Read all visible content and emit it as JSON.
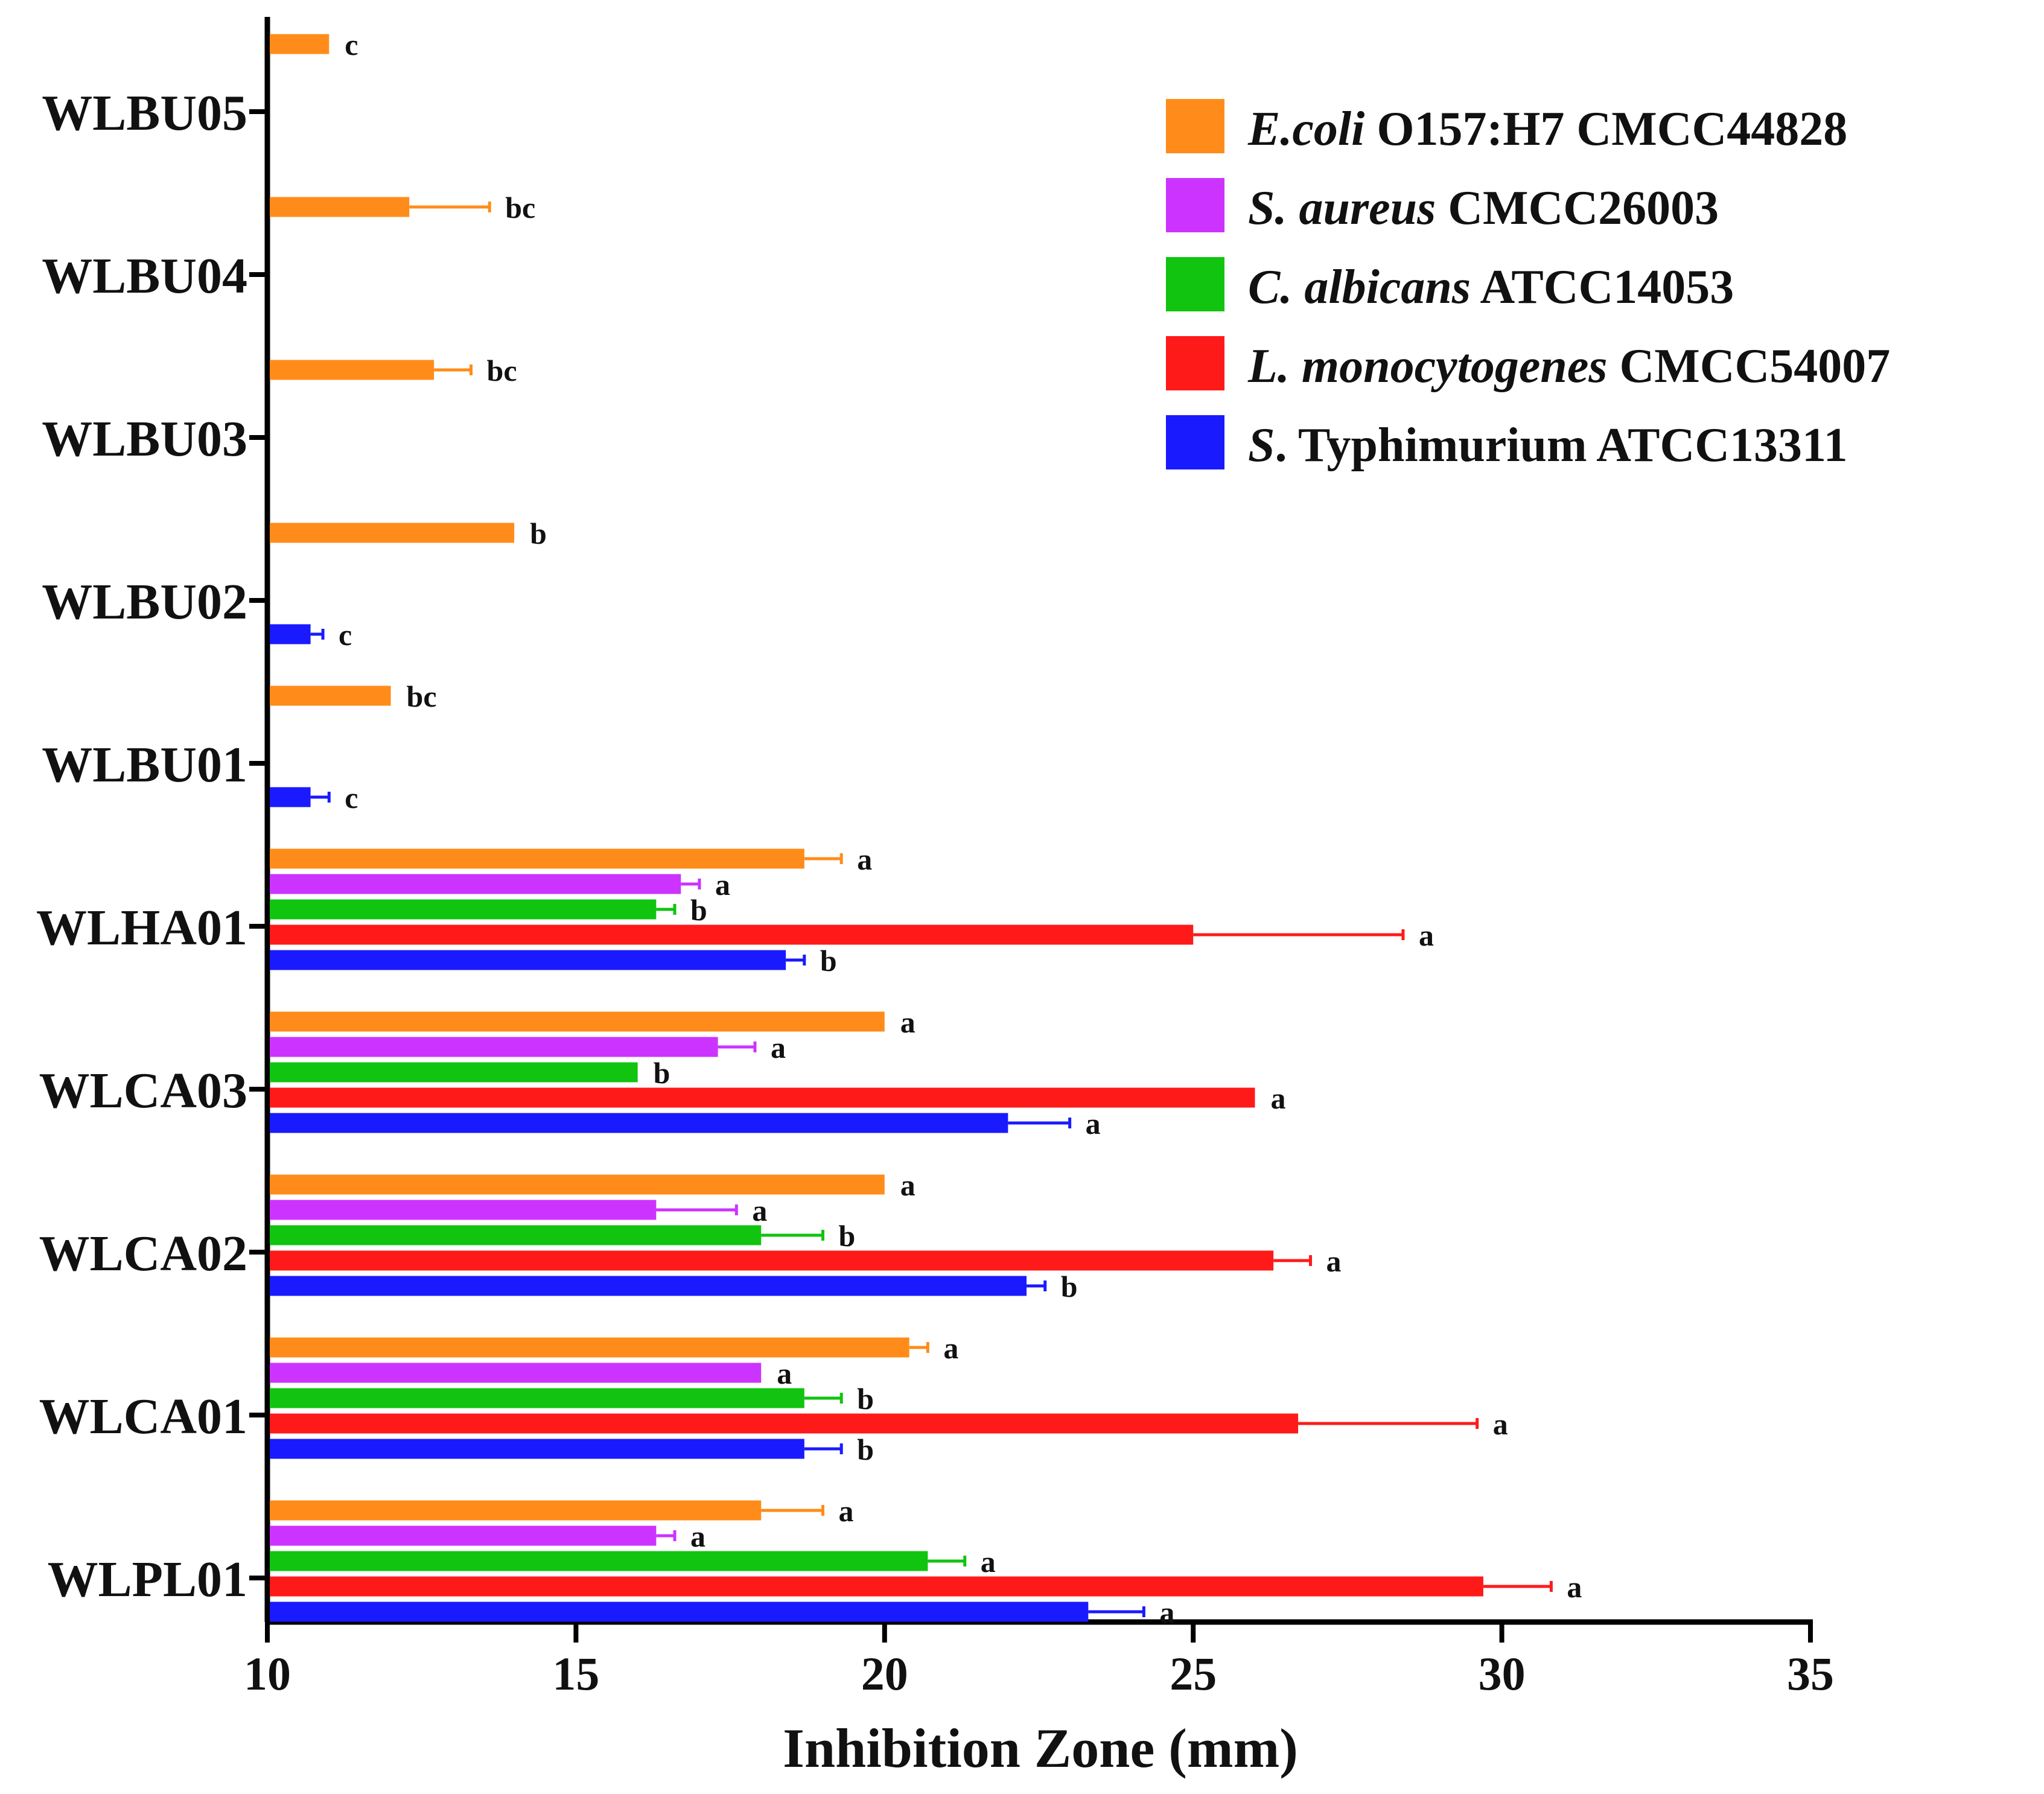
{
  "chart_data": {
    "type": "bar",
    "orientation": "horizontal",
    "xlabel": "Inhibition Zone (mm)",
    "ylabel": "",
    "xlim": [
      10,
      35
    ],
    "x_ticks": [
      "10",
      "15",
      "20",
      "25",
      "30",
      "35"
    ],
    "categories": [
      "WLBU05",
      "WLBU04",
      "WLBU03",
      "WLBU02",
      "WLBU01",
      "WLHA01",
      "WLCA03",
      "WLCA02",
      "WLCA01",
      "WLPL01"
    ],
    "legend_position": "top-right",
    "series": [
      {
        "name": "E.coli O157:H7 CMCC44828",
        "legend_italic": "E.coli",
        "legend_rest": " O157:H7 CMCC44828",
        "color": "#FF8C1A",
        "values": [
          11.0,
          12.3,
          12.7,
          14.0,
          12.0,
          18.7,
          20.0,
          20.0,
          20.4,
          18.0
        ],
        "errors": [
          0,
          1.3,
          0.6,
          0,
          0,
          0.6,
          0,
          0,
          0.3,
          1.0
        ],
        "letters": [
          "c",
          "bc",
          "bc",
          "b",
          "bc",
          "a",
          "a",
          "a",
          "a",
          "a"
        ]
      },
      {
        "name": "S. aureus CMCC26003",
        "legend_italic": "S. aureus",
        "legend_rest": " CMCC26003",
        "color": "#CC33FF",
        "values": [
          null,
          null,
          null,
          null,
          null,
          16.7,
          17.3,
          16.3,
          18.0,
          16.3
        ],
        "errors": [
          0,
          0,
          0,
          0,
          0,
          0.3,
          0.6,
          1.3,
          0,
          0.3
        ],
        "letters": [
          "",
          "",
          "",
          "",
          "",
          "a",
          "a",
          "a",
          "a",
          "a"
        ]
      },
      {
        "name": "C. albicans ATCC14053",
        "legend_italic": "C. albicans",
        "legend_rest": " ATCC14053",
        "color": "#11C40F",
        "values": [
          null,
          null,
          null,
          null,
          null,
          16.3,
          16.0,
          18.0,
          18.7,
          20.7
        ],
        "errors": [
          0,
          0,
          0,
          0,
          0,
          0.3,
          0,
          1.0,
          0.6,
          0.6
        ],
        "letters": [
          "",
          "",
          "",
          "",
          "",
          "b",
          "b",
          "b",
          "b",
          "a"
        ]
      },
      {
        "name": "L. monocytogenes CMCC54007",
        "legend_italic": "L. monocytogenes",
        "legend_rest": " CMCC54007",
        "color": "#FF1A1A",
        "values": [
          null,
          null,
          null,
          null,
          null,
          25.0,
          26.0,
          26.3,
          26.7,
          29.7
        ],
        "errors": [
          0,
          0,
          0,
          0,
          0,
          3.4,
          0,
          0.6,
          2.9,
          1.1
        ],
        "letters": [
          "",
          "",
          "",
          "",
          "",
          "a",
          "a",
          "a",
          "a",
          "a"
        ]
      },
      {
        "name": "S. Typhimurium ATCC13311",
        "legend_italic": "S",
        "legend_rest": ". Typhimurium ATCC13311",
        "color": "#1A1AFF",
        "values": [
          null,
          null,
          null,
          10.7,
          10.7,
          18.4,
          22.0,
          22.3,
          18.7,
          23.3
        ],
        "errors": [
          0,
          0,
          0,
          0.2,
          0.3,
          0.3,
          1.0,
          0.3,
          0.6,
          0.9
        ],
        "letters": [
          "",
          "",
          "",
          "c",
          "c",
          "b",
          "a",
          "b",
          "b",
          "a"
        ]
      }
    ]
  }
}
